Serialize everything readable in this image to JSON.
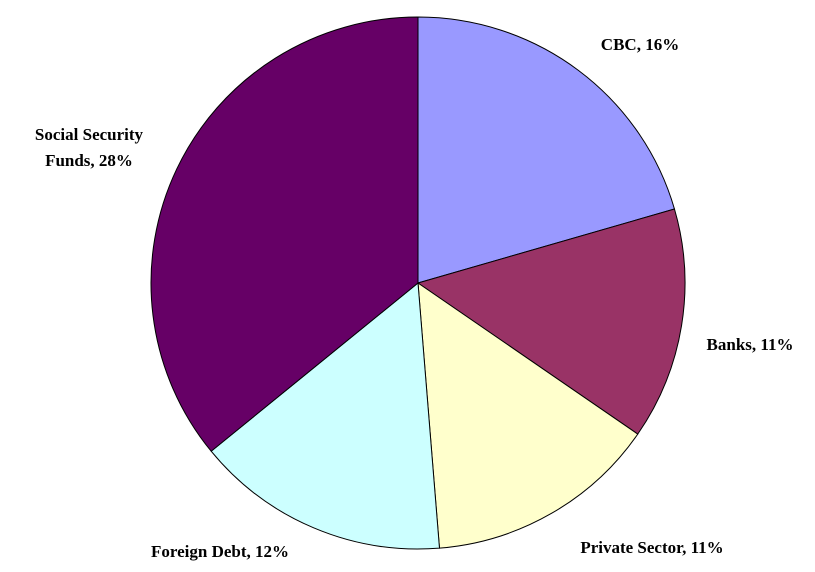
{
  "chart_data": {
    "type": "pie",
    "title": "",
    "unit": "%",
    "legend": "none",
    "slices": [
      {
        "label": "CBC",
        "value": 16,
        "display": "CBC, 16%",
        "color": "#9999FF"
      },
      {
        "label": "Banks",
        "value": 11,
        "display": "Banks, 11%",
        "color": "#993366"
      },
      {
        "label": "Private Sector",
        "value": 11,
        "display": "Private Sector, 11%",
        "color": "#FFFFCC"
      },
      {
        "label": "Foreign Debt",
        "value": 12,
        "display": "Foreign Debt, 12%",
        "color": "#CCFFFF"
      },
      {
        "label": "Social Security Funds",
        "value": 28,
        "display": "Social Security Funds, 28%",
        "display_lines": [
          "Social Security",
          "Funds, 28%"
        ],
        "color": "#660066"
      }
    ]
  }
}
